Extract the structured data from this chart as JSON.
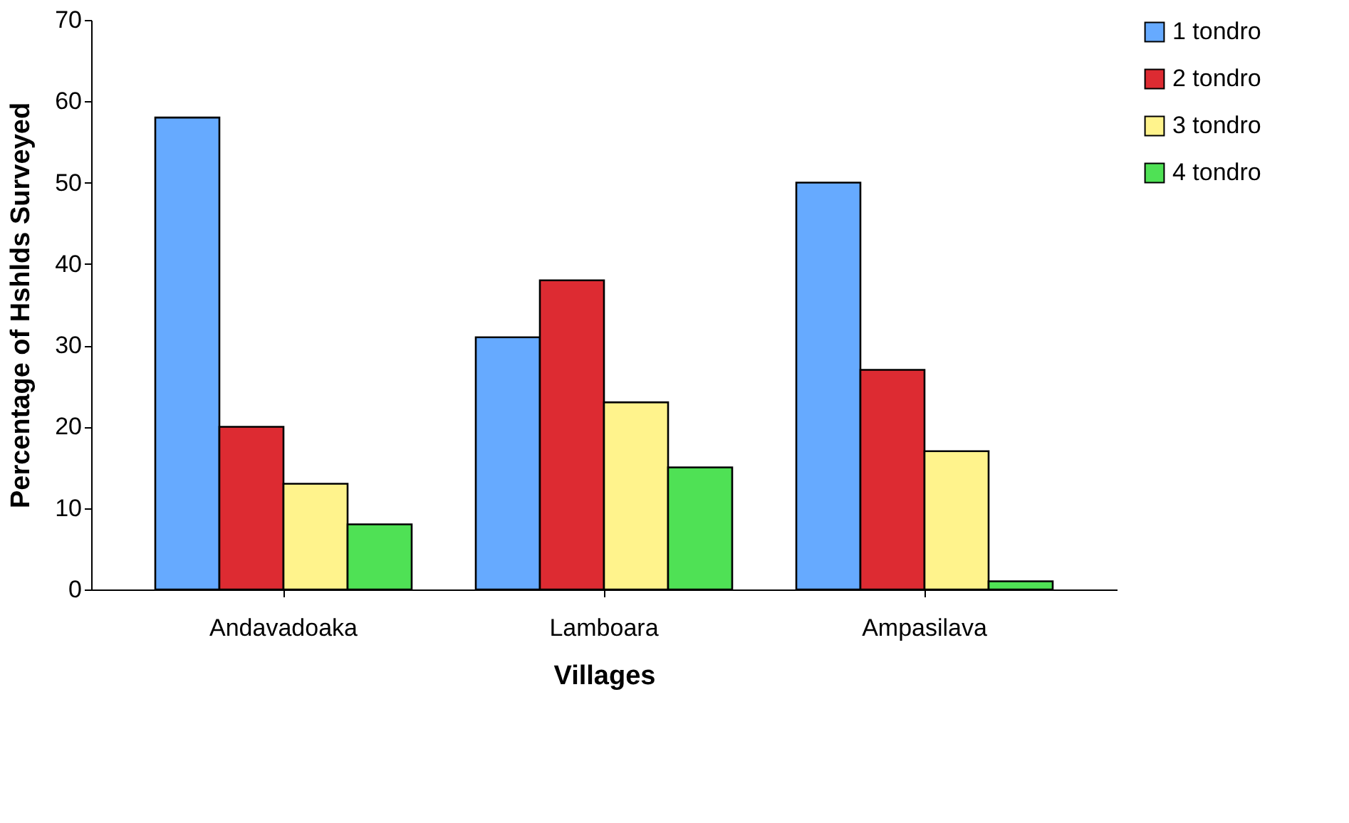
{
  "chart_data": {
    "type": "bar",
    "xlabel": "Villages",
    "ylabel": "Percentage of Hshlds Surveyed",
    "categories": [
      "Andavadoaka",
      "Lamboara",
      "Ampasilava"
    ],
    "series": [
      {
        "name": "1 tondro",
        "color": "#66aaff",
        "values": [
          58,
          31,
          50
        ]
      },
      {
        "name": "2 tondro",
        "color": "#dd2b32",
        "values": [
          20,
          38,
          27
        ]
      },
      {
        "name": "3 tondro",
        "color": "#fff38c",
        "values": [
          13,
          23,
          17
        ]
      },
      {
        "name": "4 tondro",
        "color": "#4fe155",
        "values": [
          8,
          15,
          1
        ]
      }
    ],
    "ylim": [
      0,
      70
    ],
    "yticks": [
      0,
      10,
      20,
      30,
      40,
      50,
      60,
      70
    ],
    "grid": false,
    "legend": "right"
  }
}
